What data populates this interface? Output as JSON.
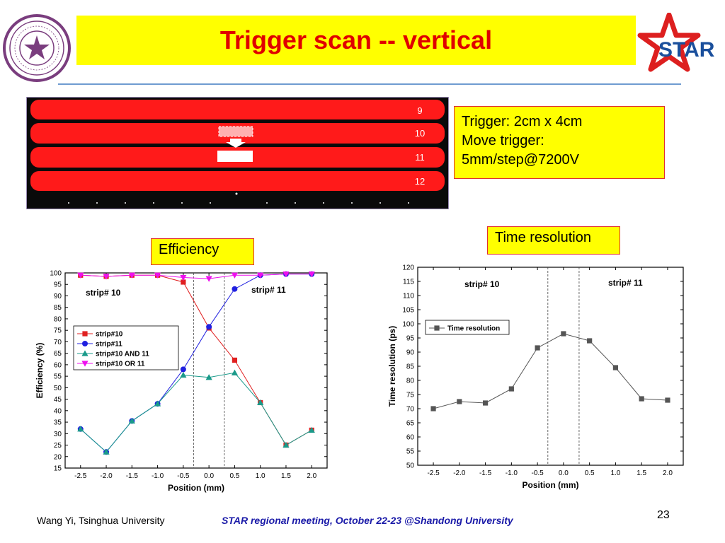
{
  "slide": {
    "title": "Trigger scan -- vertical",
    "logo_text": "STAR",
    "trigger_info": [
      "Trigger: 2cm x 4cm",
      "Move trigger:",
      "5mm/step@7200V"
    ],
    "strip_numbers": [
      "9",
      "10",
      "11",
      "12"
    ],
    "efficiency_label": "Efficiency",
    "time_resolution_label": "Time resolution",
    "footer_left": "Wang Yi, Tsinghua University",
    "footer_center": "STAR regional meeting, October 22-23 @Shandong University",
    "page_number": "23",
    "colors": {
      "title_bg": "#ffff00",
      "title_text": "#e00000",
      "strip_red": "#ff1a1a",
      "footer_blue": "#1a1aa8"
    }
  },
  "chart_data": [
    {
      "type": "line",
      "title": "",
      "xlabel": "Position (mm)",
      "ylabel": "Efficiency (%)",
      "xlim": [
        -2.8,
        2.3
      ],
      "ylim": [
        15,
        100
      ],
      "xticks": [
        -2.5,
        -2.0,
        -1.5,
        -1.0,
        -0.5,
        0.0,
        0.5,
        1.0,
        1.5,
        2.0
      ],
      "yticks": [
        15,
        20,
        25,
        30,
        35,
        40,
        45,
        50,
        55,
        60,
        65,
        70,
        75,
        80,
        85,
        90,
        95,
        100
      ],
      "x": [
        -2.5,
        -2.0,
        -1.5,
        -1.0,
        -0.5,
        0.0,
        0.5,
        1.0,
        1.5,
        2.0
      ],
      "annotations": [
        "strip# 10",
        "strip# 11"
      ],
      "vlines": [
        -0.3,
        0.3
      ],
      "legend_position": "middle-left",
      "series": [
        {
          "name": "strip#10",
          "color": "#e02020",
          "marker": "square",
          "values": [
            99,
            98.5,
            99,
            99,
            96,
            76,
            62,
            43.5,
            25,
            31.5
          ]
        },
        {
          "name": "strip#11",
          "color": "#2020e0",
          "marker": "circle",
          "values": [
            32,
            22,
            35.5,
            43,
            58,
            76.5,
            93,
            99,
            99.5,
            99.5
          ]
        },
        {
          "name": "strip#10 AND 11",
          "color": "#1a9a8a",
          "marker": "triangle-up",
          "values": [
            32,
            22,
            35.5,
            43,
            55.5,
            54.5,
            56.5,
            43.5,
            25,
            31.5
          ]
        },
        {
          "name": "strip#10 OR 11",
          "color": "#ee10ee",
          "marker": "triangle-down",
          "values": [
            99,
            98.5,
            99,
            99,
            98,
            97.5,
            99,
            99,
            99.5,
            99.5
          ]
        }
      ]
    },
    {
      "type": "line",
      "title": "",
      "xlabel": "Position (mm)",
      "ylabel": "Time resolution (ps)",
      "xlim": [
        -2.8,
        2.3
      ],
      "ylim": [
        50,
        120
      ],
      "xticks": [
        -2.5,
        -2.0,
        -1.5,
        -1.0,
        -0.5,
        0.0,
        0.5,
        1.0,
        1.5,
        2.0
      ],
      "yticks": [
        50,
        55,
        60,
        65,
        70,
        75,
        80,
        85,
        90,
        95,
        100,
        105,
        110,
        115,
        120
      ],
      "x": [
        -2.5,
        -2.0,
        -1.5,
        -1.0,
        -0.5,
        0.0,
        0.5,
        1.0,
        1.5,
        2.0
      ],
      "annotations": [
        "strip# 10",
        "strip# 11"
      ],
      "vlines": [
        -0.3,
        0.3
      ],
      "legend_position": "top-left",
      "series": [
        {
          "name": "Time resolution",
          "color": "#555555",
          "marker": "square",
          "values": [
            70,
            72.5,
            72,
            77,
            91.5,
            96.5,
            94,
            84.5,
            73.5,
            73
          ]
        }
      ]
    }
  ]
}
